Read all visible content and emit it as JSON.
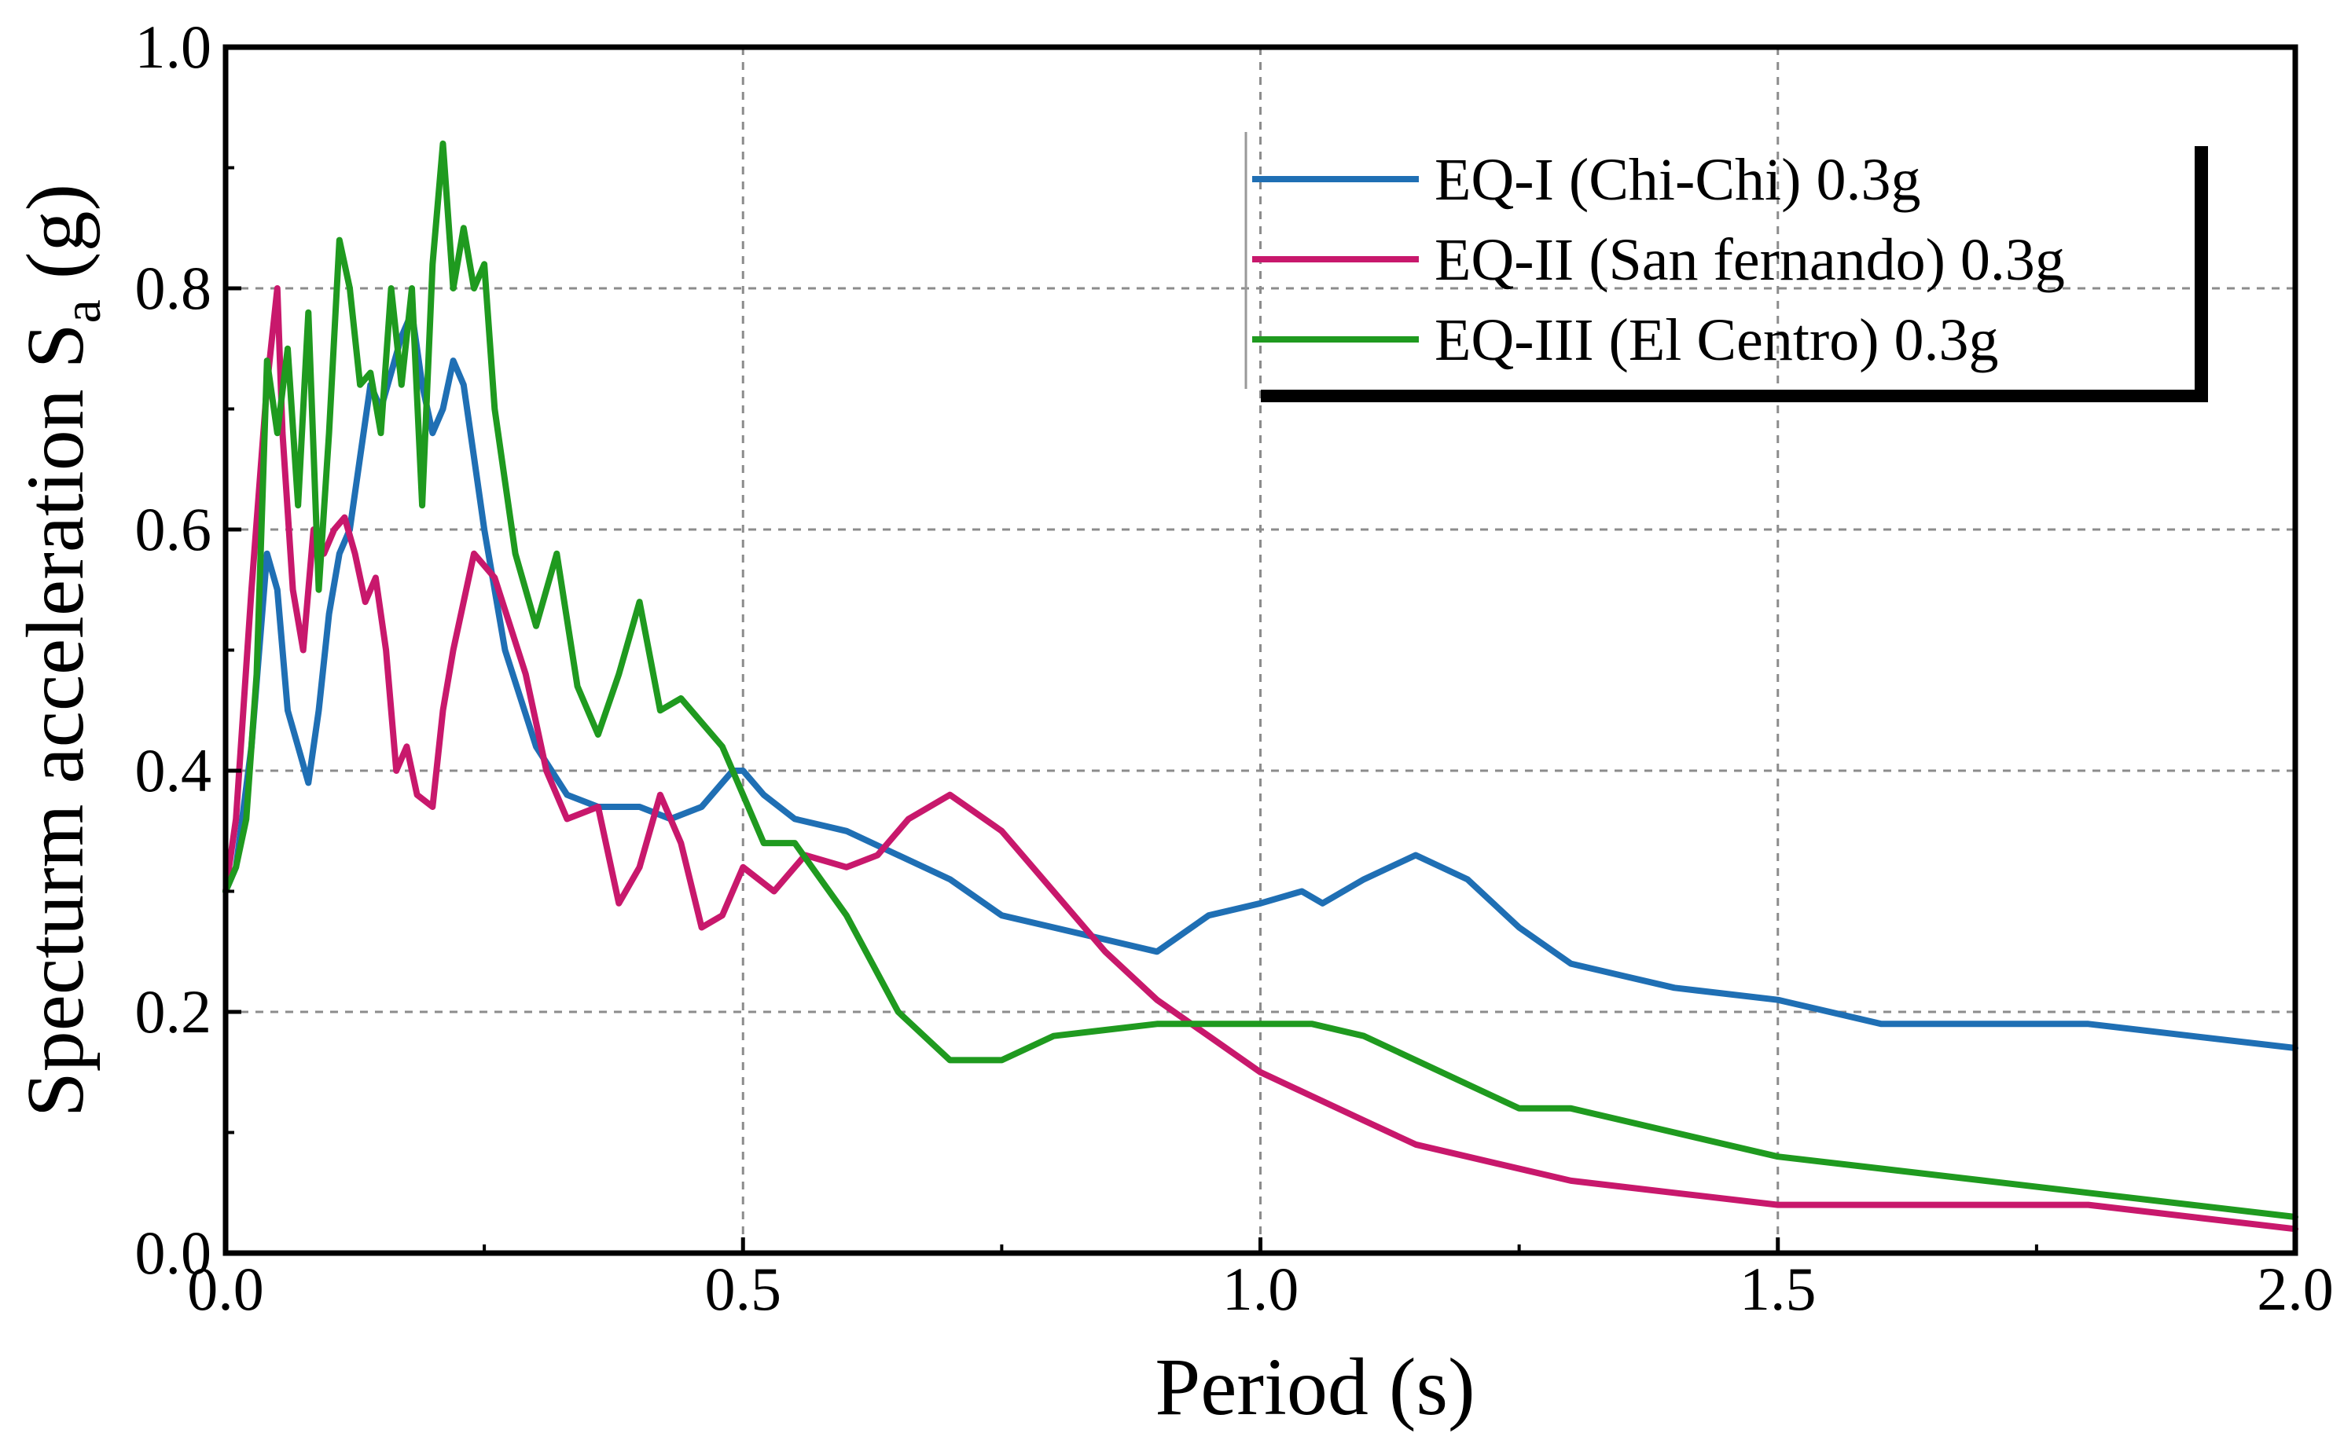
{
  "chart_data": {
    "type": "line",
    "title": "",
    "xlabel": "Period (s)",
    "ylabel": "Specturm acceleration S",
    "ylabel_subscript": "a",
    "ylabel_unit": " (g)",
    "xlim": [
      0,
      2
    ],
    "ylim": [
      0,
      1
    ],
    "x_ticks": [
      0,
      0.5,
      1,
      1.5,
      2
    ],
    "x_tick_labels": [
      "0.0",
      "0.5",
      "1.0",
      "1.5",
      "2.0"
    ],
    "y_ticks": [
      0,
      0.2,
      0.4,
      0.6,
      0.8,
      1.0
    ],
    "y_tick_labels": [
      "0.0",
      "0.2",
      "0.4",
      "0.6",
      "0.8",
      "1.0"
    ],
    "grid": true,
    "legend_position": "top-right",
    "series": [
      {
        "name": "EQ-I (Chi-Chi) 0.3g",
        "color": "#1f6fb4",
        "x": [
          0,
          0.01,
          0.025,
          0.04,
          0.05,
          0.06,
          0.07,
          0.08,
          0.09,
          0.1,
          0.11,
          0.12,
          0.13,
          0.14,
          0.15,
          0.16,
          0.17,
          0.18,
          0.19,
          0.2,
          0.21,
          0.22,
          0.23,
          0.24,
          0.25,
          0.27,
          0.3,
          0.33,
          0.36,
          0.4,
          0.43,
          0.46,
          0.49,
          0.5,
          0.52,
          0.55,
          0.6,
          0.65,
          0.7,
          0.75,
          0.8,
          0.85,
          0.9,
          0.95,
          1.0,
          1.04,
          1.06,
          1.1,
          1.15,
          1.2,
          1.25,
          1.3,
          1.35,
          1.4,
          1.5,
          1.6,
          1.7,
          1.8,
          1.9,
          2.0
        ],
        "y": [
          0.3,
          0.32,
          0.42,
          0.58,
          0.55,
          0.45,
          0.42,
          0.39,
          0.45,
          0.53,
          0.58,
          0.6,
          0.66,
          0.72,
          0.7,
          0.73,
          0.76,
          0.78,
          0.72,
          0.68,
          0.7,
          0.74,
          0.72,
          0.66,
          0.6,
          0.5,
          0.42,
          0.38,
          0.37,
          0.37,
          0.36,
          0.37,
          0.4,
          0.4,
          0.38,
          0.36,
          0.35,
          0.33,
          0.31,
          0.28,
          0.27,
          0.26,
          0.25,
          0.28,
          0.29,
          0.3,
          0.29,
          0.31,
          0.33,
          0.31,
          0.27,
          0.24,
          0.23,
          0.22,
          0.21,
          0.19,
          0.19,
          0.19,
          0.18,
          0.17
        ]
      },
      {
        "name": "EQ-II (San fernando) 0.3g",
        "color": "#c8186c",
        "x": [
          0,
          0.01,
          0.025,
          0.04,
          0.05,
          0.055,
          0.065,
          0.075,
          0.085,
          0.095,
          0.105,
          0.115,
          0.125,
          0.135,
          0.145,
          0.155,
          0.165,
          0.175,
          0.185,
          0.2,
          0.21,
          0.22,
          0.24,
          0.26,
          0.29,
          0.31,
          0.33,
          0.36,
          0.38,
          0.4,
          0.42,
          0.44,
          0.46,
          0.48,
          0.5,
          0.53,
          0.56,
          0.6,
          0.63,
          0.66,
          0.7,
          0.75,
          0.8,
          0.85,
          0.9,
          0.95,
          1.0,
          1.05,
          1.1,
          1.15,
          1.2,
          1.3,
          1.4,
          1.5,
          1.6,
          1.7,
          1.8,
          1.9,
          2.0
        ],
        "y": [
          0.3,
          0.36,
          0.55,
          0.72,
          0.8,
          0.68,
          0.55,
          0.5,
          0.6,
          0.58,
          0.6,
          0.61,
          0.58,
          0.54,
          0.56,
          0.5,
          0.4,
          0.42,
          0.38,
          0.37,
          0.45,
          0.5,
          0.58,
          0.56,
          0.48,
          0.4,
          0.36,
          0.37,
          0.29,
          0.32,
          0.38,
          0.34,
          0.27,
          0.28,
          0.32,
          0.3,
          0.33,
          0.32,
          0.33,
          0.36,
          0.38,
          0.35,
          0.3,
          0.25,
          0.21,
          0.18,
          0.15,
          0.13,
          0.11,
          0.09,
          0.08,
          0.06,
          0.05,
          0.04,
          0.04,
          0.04,
          0.04,
          0.03,
          0.02
        ]
      },
      {
        "name": "EQ-III (El Centro) 0.3g",
        "color": "#1f9a1f",
        "x": [
          0,
          0.01,
          0.02,
          0.03,
          0.04,
          0.05,
          0.06,
          0.07,
          0.08,
          0.09,
          0.1,
          0.11,
          0.12,
          0.13,
          0.14,
          0.15,
          0.16,
          0.17,
          0.18,
          0.19,
          0.2,
          0.21,
          0.22,
          0.23,
          0.24,
          0.25,
          0.26,
          0.28,
          0.3,
          0.32,
          0.34,
          0.36,
          0.38,
          0.4,
          0.42,
          0.44,
          0.46,
          0.48,
          0.5,
          0.52,
          0.55,
          0.6,
          0.65,
          0.7,
          0.75,
          0.8,
          0.9,
          1.0,
          1.05,
          1.1,
          1.2,
          1.25,
          1.3,
          1.4,
          1.5,
          1.6,
          1.7,
          1.8,
          1.9,
          2.0
        ],
        "y": [
          0.3,
          0.32,
          0.36,
          0.48,
          0.74,
          0.68,
          0.75,
          0.62,
          0.78,
          0.55,
          0.68,
          0.84,
          0.8,
          0.72,
          0.73,
          0.68,
          0.8,
          0.72,
          0.8,
          0.62,
          0.82,
          0.92,
          0.8,
          0.85,
          0.8,
          0.82,
          0.7,
          0.58,
          0.52,
          0.58,
          0.47,
          0.43,
          0.48,
          0.54,
          0.45,
          0.46,
          0.44,
          0.42,
          0.38,
          0.34,
          0.34,
          0.28,
          0.2,
          0.16,
          0.16,
          0.18,
          0.19,
          0.19,
          0.19,
          0.18,
          0.14,
          0.12,
          0.12,
          0.1,
          0.08,
          0.07,
          0.06,
          0.05,
          0.04,
          0.03
        ]
      }
    ]
  }
}
